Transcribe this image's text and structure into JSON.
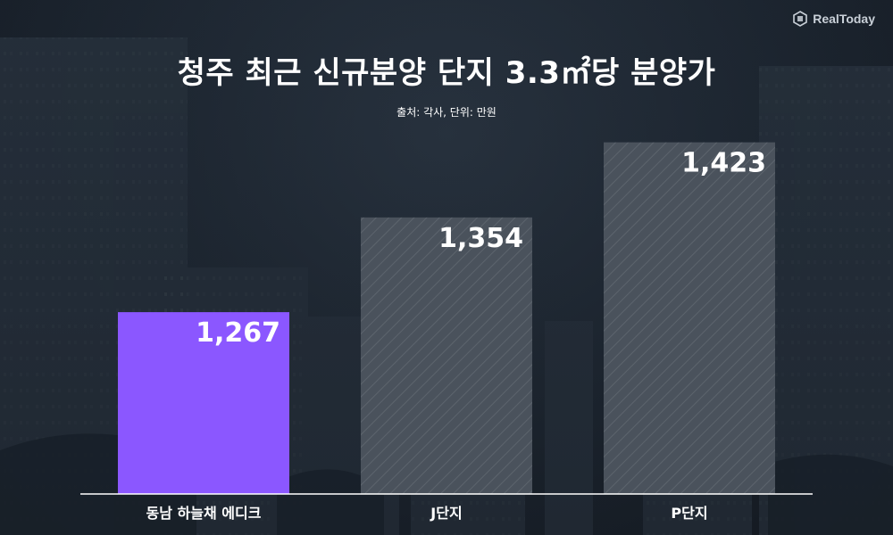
{
  "brand": {
    "name": "RealToday",
    "icon": "realtoday-logo-icon"
  },
  "chart_data": {
    "type": "bar",
    "title": "청주 최근 신규분양 단지 3.3㎡당 분양가",
    "subtitle": "출처: 각사, 단위: 만원",
    "categories": [
      "동남 하늘채 에디크",
      "J단지",
      "P단지"
    ],
    "values": [
      1267,
      1354,
      1423
    ],
    "value_labels": [
      "1,267",
      "1,354",
      "1,423"
    ],
    "colors": [
      "#8b57ff",
      "#4a525c",
      "#4a525c"
    ],
    "baseline_color": "#ffffff",
    "ylim": [
      1100,
      1480
    ],
    "grid": false,
    "legend": "none",
    "xlabel": "",
    "ylabel": ""
  }
}
